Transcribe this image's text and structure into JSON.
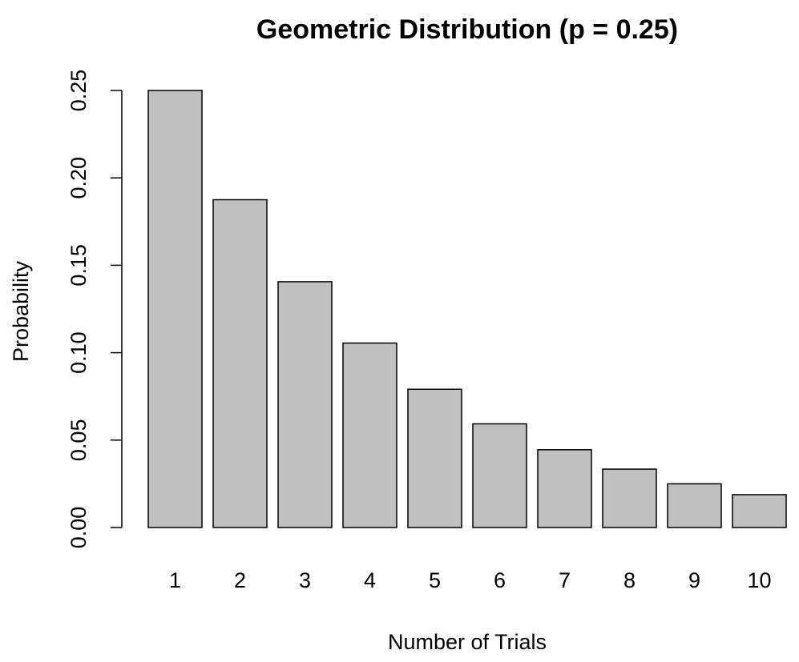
{
  "chart_data": {
    "type": "bar",
    "title": "Geometric Distribution (p = 0.25)",
    "xlabel": "Number of Trials",
    "ylabel": "Probability",
    "categories": [
      "1",
      "2",
      "3",
      "4",
      "5",
      "6",
      "7",
      "8",
      "9",
      "10"
    ],
    "values": [
      0.25,
      0.1875,
      0.1406,
      0.1055,
      0.0791,
      0.0593,
      0.0445,
      0.0334,
      0.025,
      0.0188
    ],
    "ylim": [
      0,
      0.25
    ],
    "yticks": [
      "0.00",
      "0.05",
      "0.10",
      "0.15",
      "0.20",
      "0.25"
    ],
    "bar_color": "#c0c0c0",
    "grid": false,
    "legend": "none"
  }
}
